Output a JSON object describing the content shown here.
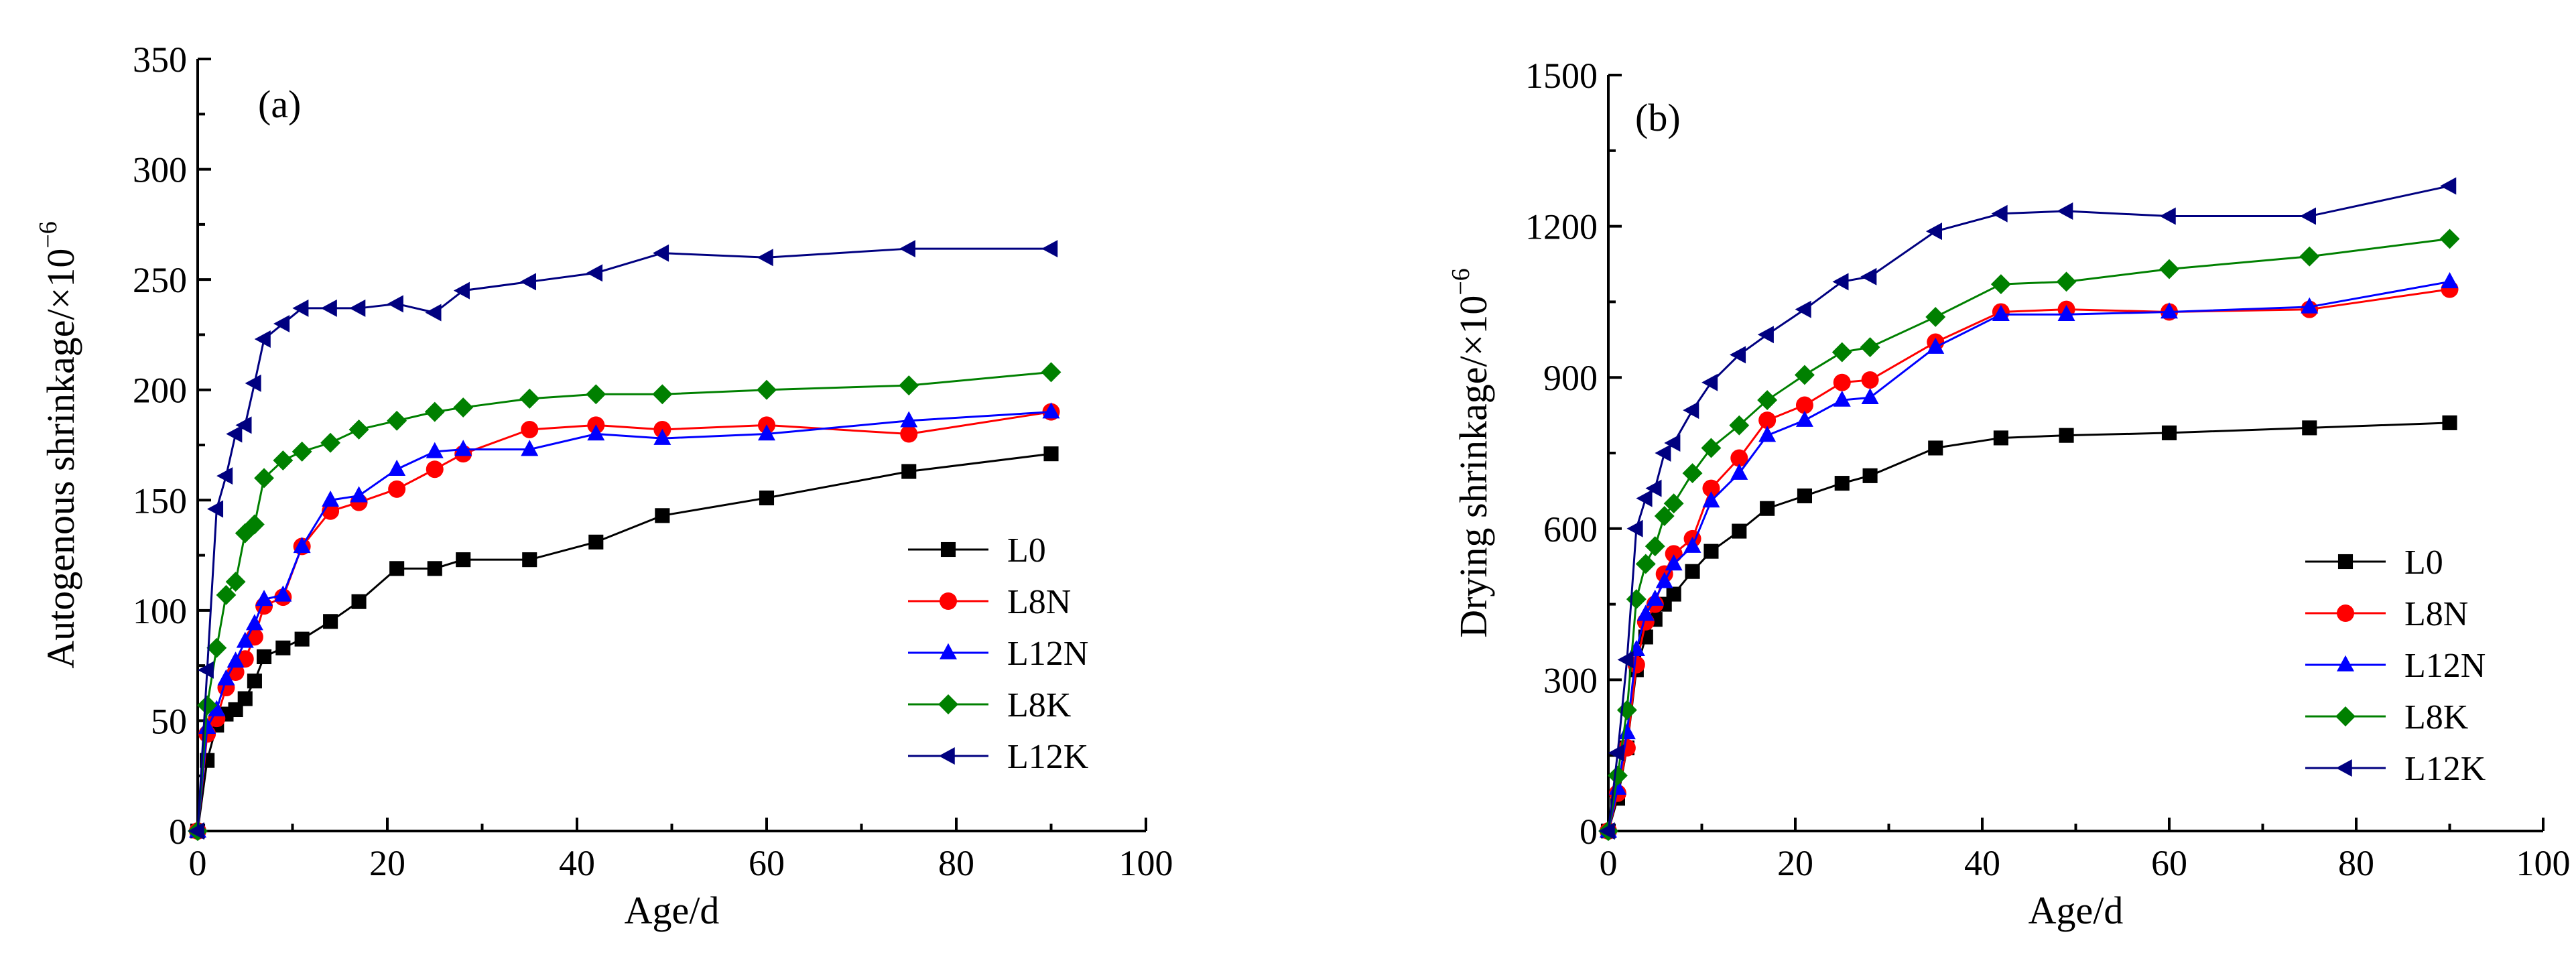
{
  "figure": {
    "colors": {
      "L0": "#000000",
      "L8N": "#ff0000",
      "L12N": "#0000ff",
      "L8K": "#008000",
      "L12K": "#000080"
    }
  },
  "chart_data": [
    {
      "type": "line",
      "panel_label": "(a)",
      "xlabel": "Age/d",
      "ylabel": "Autogenous shrinkage/×10",
      "ylabel_exp": "−6",
      "xlim": [
        0,
        100
      ],
      "ylim": [
        0,
        350
      ],
      "xticks": [
        0,
        20,
        40,
        60,
        80,
        100
      ],
      "yticks": [
        0,
        50,
        100,
        150,
        200,
        250,
        300,
        350
      ],
      "legend_position": "lower-right",
      "series": [
        {
          "name": "L0",
          "marker": "square",
          "x": [
            0,
            1,
            2,
            3,
            4,
            5,
            6,
            7,
            9,
            11,
            14,
            17,
            21,
            25,
            28,
            35,
            42,
            49,
            60,
            75,
            90
          ],
          "y": [
            0,
            32,
            48,
            53,
            55,
            60,
            68,
            79,
            83,
            87,
            95,
            104,
            119,
            119,
            123,
            123,
            131,
            143,
            151,
            163,
            171
          ]
        },
        {
          "name": "L8N",
          "marker": "circle",
          "x": [
            0,
            1,
            2,
            3,
            4,
            5,
            6,
            7,
            9,
            11,
            14,
            17,
            21,
            25,
            28,
            35,
            42,
            49,
            60,
            75,
            90
          ],
          "y": [
            0,
            44,
            51,
            65,
            72,
            78,
            88,
            102,
            106,
            129,
            145,
            149,
            155,
            164,
            171,
            182,
            184,
            182,
            184,
            180,
            190
          ]
        },
        {
          "name": "L12N",
          "marker": "triangle-up",
          "x": [
            0,
            1,
            2,
            3,
            4,
            5,
            6,
            7,
            9,
            11,
            14,
            17,
            21,
            25,
            28,
            35,
            42,
            49,
            60,
            75,
            90
          ],
          "y": [
            0,
            47,
            55,
            69,
            77,
            86,
            94,
            105,
            107,
            129,
            150,
            152,
            164,
            172,
            173,
            173,
            180,
            178,
            180,
            186,
            190
          ]
        },
        {
          "name": "L8K",
          "marker": "diamond",
          "x": [
            0,
            1,
            2,
            3,
            4,
            5,
            6,
            7,
            9,
            11,
            14,
            17,
            21,
            25,
            28,
            35,
            42,
            49,
            60,
            75,
            90
          ],
          "y": [
            0,
            57,
            83,
            107,
            113,
            135,
            139,
            160,
            168,
            172,
            176,
            182,
            186,
            190,
            192,
            196,
            198,
            198,
            200,
            202,
            208
          ]
        },
        {
          "name": "L12K",
          "marker": "triangle-left",
          "x": [
            0,
            1,
            2,
            3,
            4,
            5,
            6,
            7,
            9,
            11,
            14,
            17,
            21,
            25,
            28,
            35,
            42,
            49,
            60,
            75,
            90
          ],
          "y": [
            0,
            73,
            146,
            161,
            180,
            184,
            203,
            223,
            230,
            237,
            237,
            237,
            239,
            235,
            245,
            249,
            253,
            262,
            260,
            264,
            264
          ]
        }
      ]
    },
    {
      "type": "line",
      "panel_label": "(b)",
      "xlabel": "Age/d",
      "ylabel": "Drying shrinkage/×10",
      "ylabel_exp": "−6",
      "xlim": [
        0,
        100
      ],
      "ylim": [
        0,
        1500
      ],
      "xticks": [
        0,
        20,
        40,
        60,
        80,
        100
      ],
      "yticks": [
        0,
        300,
        600,
        900,
        1200,
        1500
      ],
      "legend_position": "lower-right",
      "series": [
        {
          "name": "L0",
          "marker": "square",
          "x": [
            0,
            1,
            2,
            3,
            4,
            5,
            6,
            7,
            9,
            11,
            14,
            17,
            21,
            25,
            28,
            35,
            42,
            49,
            60,
            75,
            90
          ],
          "y": [
            0,
            65,
            165,
            320,
            385,
            420,
            450,
            470,
            515,
            555,
            595,
            640,
            665,
            690,
            705,
            760,
            780,
            785,
            790,
            800,
            810
          ]
        },
        {
          "name": "L8N",
          "marker": "circle",
          "x": [
            0,
            1,
            2,
            3,
            4,
            5,
            6,
            7,
            9,
            11,
            14,
            17,
            21,
            25,
            28,
            35,
            42,
            49,
            60,
            75,
            90
          ],
          "y": [
            0,
            75,
            165,
            330,
            415,
            450,
            510,
            550,
            580,
            680,
            740,
            815,
            845,
            890,
            895,
            970,
            1030,
            1035,
            1030,
            1035,
            1075
          ]
        },
        {
          "name": "L12N",
          "marker": "triangle-up",
          "x": [
            0,
            1,
            2,
            3,
            4,
            5,
            6,
            7,
            9,
            11,
            14,
            17,
            21,
            25,
            28,
            35,
            42,
            49,
            60,
            75,
            90
          ],
          "y": [
            0,
            85,
            195,
            360,
            430,
            460,
            495,
            530,
            565,
            655,
            710,
            785,
            815,
            855,
            860,
            960,
            1025,
            1025,
            1030,
            1040,
            1090
          ]
        },
        {
          "name": "L8K",
          "marker": "diamond",
          "x": [
            0,
            1,
            2,
            3,
            4,
            5,
            6,
            7,
            9,
            11,
            14,
            17,
            21,
            25,
            28,
            35,
            42,
            49,
            60,
            75,
            90
          ],
          "y": [
            0,
            110,
            240,
            460,
            530,
            565,
            625,
            650,
            710,
            760,
            805,
            855,
            905,
            950,
            960,
            1020,
            1085,
            1090,
            1115,
            1140,
            1175
          ]
        },
        {
          "name": "L12K",
          "marker": "triangle-left",
          "x": [
            0,
            1,
            2,
            3,
            4,
            5,
            6,
            7,
            9,
            11,
            14,
            17,
            21,
            25,
            28,
            35,
            42,
            49,
            60,
            75,
            90
          ],
          "y": [
            0,
            155,
            340,
            600,
            660,
            680,
            750,
            770,
            835,
            890,
            945,
            985,
            1035,
            1090,
            1100,
            1190,
            1225,
            1230,
            1220,
            1220,
            1280
          ]
        }
      ]
    }
  ]
}
